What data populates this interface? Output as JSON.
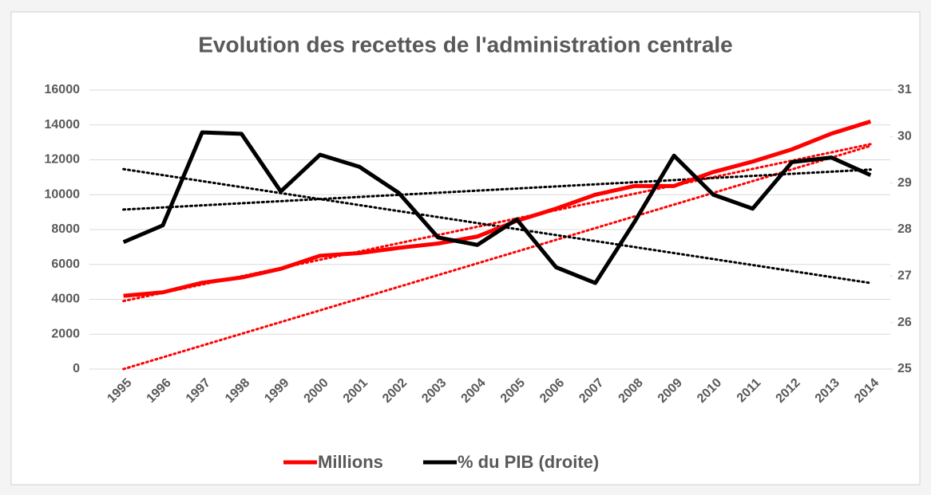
{
  "chart_data": {
    "type": "line",
    "title": "Evolution des recettes de l'administration centrale",
    "categories": [
      "1995",
      "1996",
      "1997",
      "1998",
      "1999",
      "2000",
      "2001",
      "2002",
      "2003",
      "2004",
      "2005",
      "2006",
      "2007",
      "2008",
      "2009",
      "2010",
      "2011",
      "2012",
      "2013",
      "2014"
    ],
    "series": [
      {
        "name": "Millions",
        "color": "#ff0000",
        "axis": "y",
        "values": [
          4200,
          4400,
          4950,
          5250,
          5750,
          6500,
          6650,
          6950,
          7200,
          7600,
          8500,
          9200,
          10000,
          10500,
          10500,
          11300,
          11900,
          12600,
          13500,
          14200
        ]
      },
      {
        "name": "% du PIB (droite)",
        "color": "#000000",
        "axis": "y2",
        "values": [
          27.73,
          28.09,
          30.09,
          30.06,
          28.82,
          29.61,
          29.35,
          28.79,
          27.83,
          27.67,
          28.22,
          27.19,
          26.85,
          28.17,
          29.59,
          28.75,
          28.45,
          29.45,
          29.55,
          29.17
        ]
      }
    ],
    "trendlines": [
      {
        "color": "#ff0000",
        "axis": "y",
        "values": [
          3900,
          12900
        ]
      },
      {
        "color": "#ff0000",
        "axis": "y",
        "values": [
          0,
          12800
        ]
      },
      {
        "color": "#000000",
        "axis": "y2",
        "values": [
          29.3,
          26.85
        ]
      },
      {
        "color": "#000000",
        "axis": "y2",
        "values": [
          28.43,
          29.29
        ]
      }
    ],
    "ylim": [
      0,
      16000
    ],
    "yticks": [
      0,
      2000,
      4000,
      6000,
      8000,
      10000,
      12000,
      14000,
      16000
    ],
    "y2lim": [
      25,
      31
    ],
    "y2ticks": [
      25,
      26,
      27,
      28,
      29,
      30,
      31
    ],
    "grid": true,
    "legend": "bottom"
  }
}
